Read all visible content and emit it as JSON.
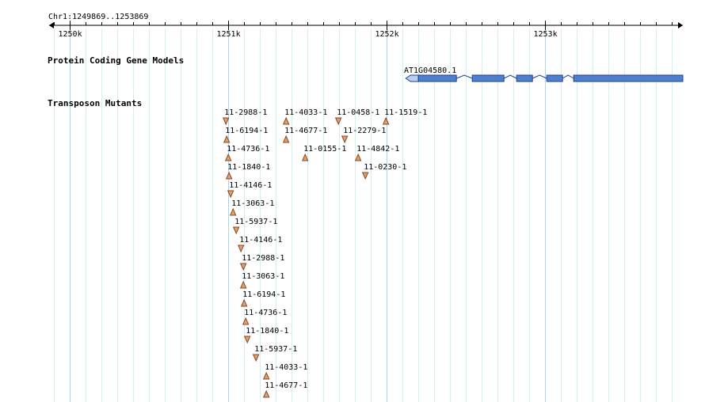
{
  "region_label": "Chr1:1249869..1253869",
  "ruler": {
    "start": 1249869,
    "end": 1253869,
    "major_ticks": [
      {
        "pos": 1250000,
        "label": "1250k"
      },
      {
        "pos": 1251000,
        "label": "1251k"
      },
      {
        "pos": 1252000,
        "label": "1252k"
      },
      {
        "pos": 1253000,
        "label": "1253k"
      }
    ],
    "minor_step": 100
  },
  "tracks": {
    "genes": {
      "title": "Protein Coding Gene Models",
      "gene": {
        "label": "AT1G04580.1",
        "strand": "-",
        "start": 1252120,
        "end": 1253869,
        "exons": [
          {
            "start": 1252120,
            "end": 1252200,
            "type": "utr"
          },
          {
            "start": 1252200,
            "end": 1252440,
            "type": "cds"
          },
          {
            "start": 1252540,
            "end": 1252740,
            "type": "cds"
          },
          {
            "start": 1252820,
            "end": 1252920,
            "type": "cds"
          },
          {
            "start": 1253010,
            "end": 1253110,
            "type": "cds"
          },
          {
            "start": 1253180,
            "end": 1253869,
            "type": "cds"
          }
        ]
      }
    },
    "transposons": {
      "title": "Transposon Mutants",
      "mutants": [
        {
          "label": "11-2988-1",
          "pos": 1250985,
          "strand": "-",
          "row": 0
        },
        {
          "label": "11-4033-1",
          "pos": 1251365,
          "strand": "+",
          "row": 0
        },
        {
          "label": "11-0458-1",
          "pos": 1251695,
          "strand": "-",
          "row": 0
        },
        {
          "label": "11-1519-1",
          "pos": 1251995,
          "strand": "+",
          "row": 0
        },
        {
          "label": "11-6194-1",
          "pos": 1250990,
          "strand": "+",
          "row": 1
        },
        {
          "label": "11-4677-1",
          "pos": 1251365,
          "strand": "+",
          "row": 1
        },
        {
          "label": "11-2279-1",
          "pos": 1251735,
          "strand": "-",
          "row": 1
        },
        {
          "label": "11-4736-1",
          "pos": 1251000,
          "strand": "+",
          "row": 2
        },
        {
          "label": "11-0155-1",
          "pos": 1251485,
          "strand": "+",
          "row": 2
        },
        {
          "label": "11-4842-1",
          "pos": 1251820,
          "strand": "+",
          "row": 2
        },
        {
          "label": "11-1840-1",
          "pos": 1251005,
          "strand": "+",
          "row": 3
        },
        {
          "label": "11-0230-1",
          "pos": 1251865,
          "strand": "-",
          "row": 3
        },
        {
          "label": "11-4146-1",
          "pos": 1251015,
          "strand": "-",
          "row": 4
        },
        {
          "label": "11-3063-1",
          "pos": 1251030,
          "strand": "+",
          "row": 5
        },
        {
          "label": "11-5937-1",
          "pos": 1251050,
          "strand": "-",
          "row": 6
        },
        {
          "label": "11-4146-1",
          "pos": 1251080,
          "strand": "-",
          "row": 7
        },
        {
          "label": "11-2988-1",
          "pos": 1251095,
          "strand": "-",
          "row": 8
        },
        {
          "label": "11-3063-1",
          "pos": 1251095,
          "strand": "+",
          "row": 9
        },
        {
          "label": "11-6194-1",
          "pos": 1251100,
          "strand": "+",
          "row": 10
        },
        {
          "label": "11-4736-1",
          "pos": 1251110,
          "strand": "+",
          "row": 11
        },
        {
          "label": "11-1840-1",
          "pos": 1251120,
          "strand": "-",
          "row": 12
        },
        {
          "label": "11-5937-1",
          "pos": 1251175,
          "strand": "-",
          "row": 13
        },
        {
          "label": "11-4033-1",
          "pos": 1251240,
          "strand": "+",
          "row": 14
        },
        {
          "label": "11-4677-1",
          "pos": 1251240,
          "strand": "+",
          "row": 15
        }
      ]
    }
  },
  "colors": {
    "grid_major": "#a8d8e8",
    "grid_minor": "#d4ecf4",
    "exon_fill": "#4f7fcf",
    "exon_stroke": "#1f3f8f",
    "utr_fill": "#b8d0f0",
    "mutant_fill": "#e0a070",
    "mutant_stroke": "#8a4a20",
    "text": "#000000"
  }
}
